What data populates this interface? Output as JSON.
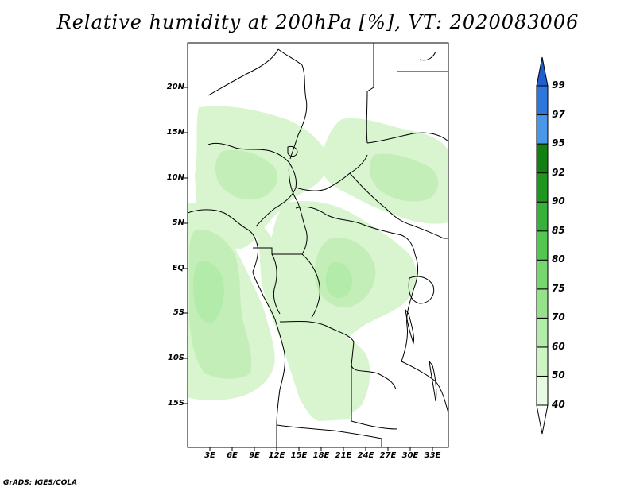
{
  "title": "Relative humidity at 200hPa [%], VT: 2020083006",
  "credit": "GrADS: IGES/COLA",
  "lat_labels": [
    "20N",
    "15N",
    "10N",
    "5N",
    "EQ",
    "5S",
    "10S",
    "15S"
  ],
  "lon_labels": [
    "3E",
    "6E",
    "9E",
    "12E",
    "15E",
    "18E",
    "21E",
    "24E",
    "27E",
    "30E",
    "33E"
  ],
  "colorbar": {
    "levels": [
      "40",
      "50",
      "60",
      "70",
      "75",
      "80",
      "85",
      "90",
      "92",
      "95",
      "97",
      "99"
    ],
    "colors": [
      "#ffffff",
      "#e6fbe1",
      "#cdf5c4",
      "#b3ecaa",
      "#96e28b",
      "#78d66e",
      "#54c74e",
      "#37b13a",
      "#1f971f",
      "#118011",
      "#4a97ea",
      "#2e78dd",
      "#1e5fcf"
    ]
  }
}
